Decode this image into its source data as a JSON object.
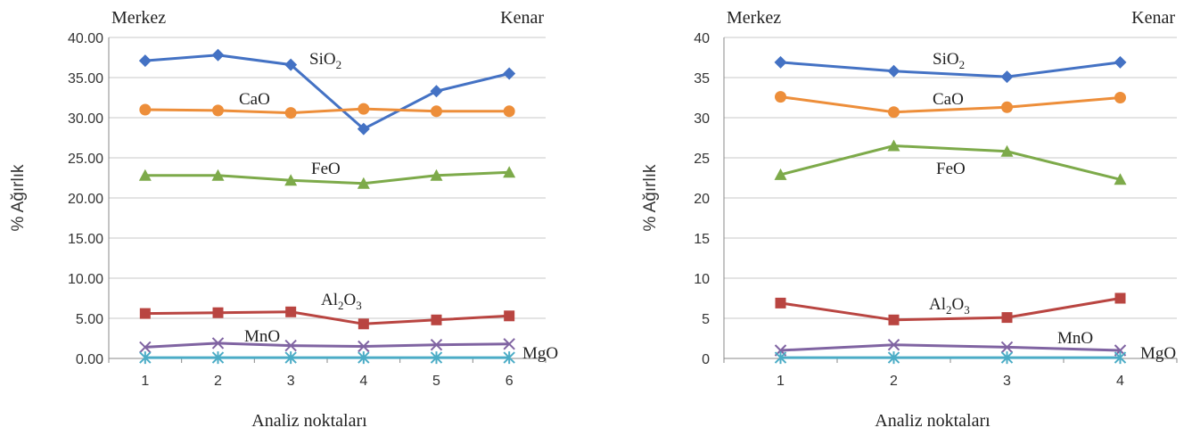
{
  "chart_data": [
    {
      "type": "line",
      "corner_left": "Merkez",
      "corner_right": "Kenar",
      "xlabel": "Analiz noktaları",
      "ylabel": "% Ağırlık",
      "categories": [
        "1",
        "2",
        "3",
        "4",
        "5",
        "6"
      ],
      "ylim": [
        0,
        40
      ],
      "yticks": [
        "0.00",
        "5.00",
        "10.00",
        "15.00",
        "20.00",
        "25.00",
        "30.00",
        "35.00",
        "40.00"
      ],
      "grid": true,
      "series": [
        {
          "name": "SiO2",
          "label_base": "SiO",
          "label_sub": "2",
          "color": "#4472C4",
          "marker": "diamond",
          "values": [
            37.1,
            37.8,
            36.6,
            28.6,
            33.3,
            35.5
          ]
        },
        {
          "name": "CaO",
          "label_base": "CaO",
          "color": "#ED8E3A",
          "marker": "circle",
          "values": [
            31.0,
            30.9,
            30.6,
            31.1,
            30.8,
            30.8
          ]
        },
        {
          "name": "FeO",
          "label_base": "FeO",
          "color": "#7DAA4A",
          "marker": "triangle",
          "values": [
            22.8,
            22.8,
            22.2,
            21.8,
            22.8,
            23.2
          ]
        },
        {
          "name": "Al2O3",
          "label_base": "Al",
          "label_sub": "2",
          "label_mid": "O",
          "label_sub2": "3",
          "color": "#B94541",
          "marker": "square",
          "values": [
            5.6,
            5.7,
            5.8,
            4.3,
            4.8,
            5.3
          ]
        },
        {
          "name": "MnO",
          "label_base": "MnO",
          "color": "#8064A2",
          "marker": "x",
          "values": [
            1.4,
            1.9,
            1.6,
            1.5,
            1.7,
            1.8
          ]
        },
        {
          "name": "MgO",
          "label_base": "MgO",
          "color": "#4BACC6",
          "marker": "star",
          "values": [
            0.1,
            0.1,
            0.1,
            0.1,
            0.1,
            0.1
          ]
        }
      ]
    },
    {
      "type": "line",
      "corner_left": "Merkez",
      "corner_right": "Kenar",
      "xlabel": "Analiz noktaları",
      "ylabel": "% Ağırlık",
      "categories": [
        "1",
        "2",
        "3",
        "4"
      ],
      "ylim": [
        0,
        40
      ],
      "yticks": [
        "0",
        "5",
        "10",
        "15",
        "20",
        "25",
        "30",
        "35",
        "40"
      ],
      "grid": true,
      "series": [
        {
          "name": "SiO2",
          "label_base": "SiO",
          "label_sub": "2",
          "color": "#4472C4",
          "marker": "diamond",
          "values": [
            36.9,
            35.8,
            35.1,
            36.9
          ]
        },
        {
          "name": "CaO",
          "label_base": "CaO",
          "color": "#ED8E3A",
          "marker": "circle",
          "values": [
            32.6,
            30.7,
            31.3,
            32.5
          ]
        },
        {
          "name": "FeO",
          "label_base": "FeO",
          "color": "#7DAA4A",
          "marker": "triangle",
          "values": [
            22.9,
            26.5,
            25.8,
            22.3
          ]
        },
        {
          "name": "Al2O3",
          "label_base": "Al",
          "label_sub": "2",
          "label_mid": "O",
          "label_sub2": "3",
          "color": "#B94541",
          "marker": "square",
          "values": [
            6.9,
            4.8,
            5.1,
            7.5
          ]
        },
        {
          "name": "MnO",
          "label_base": "MnO",
          "color": "#8064A2",
          "marker": "x",
          "values": [
            1.0,
            1.7,
            1.4,
            1.0
          ]
        },
        {
          "name": "MgO",
          "label_base": "MgO",
          "color": "#4BACC6",
          "marker": "star",
          "values": [
            0.1,
            0.1,
            0.1,
            0.1
          ]
        }
      ]
    }
  ]
}
